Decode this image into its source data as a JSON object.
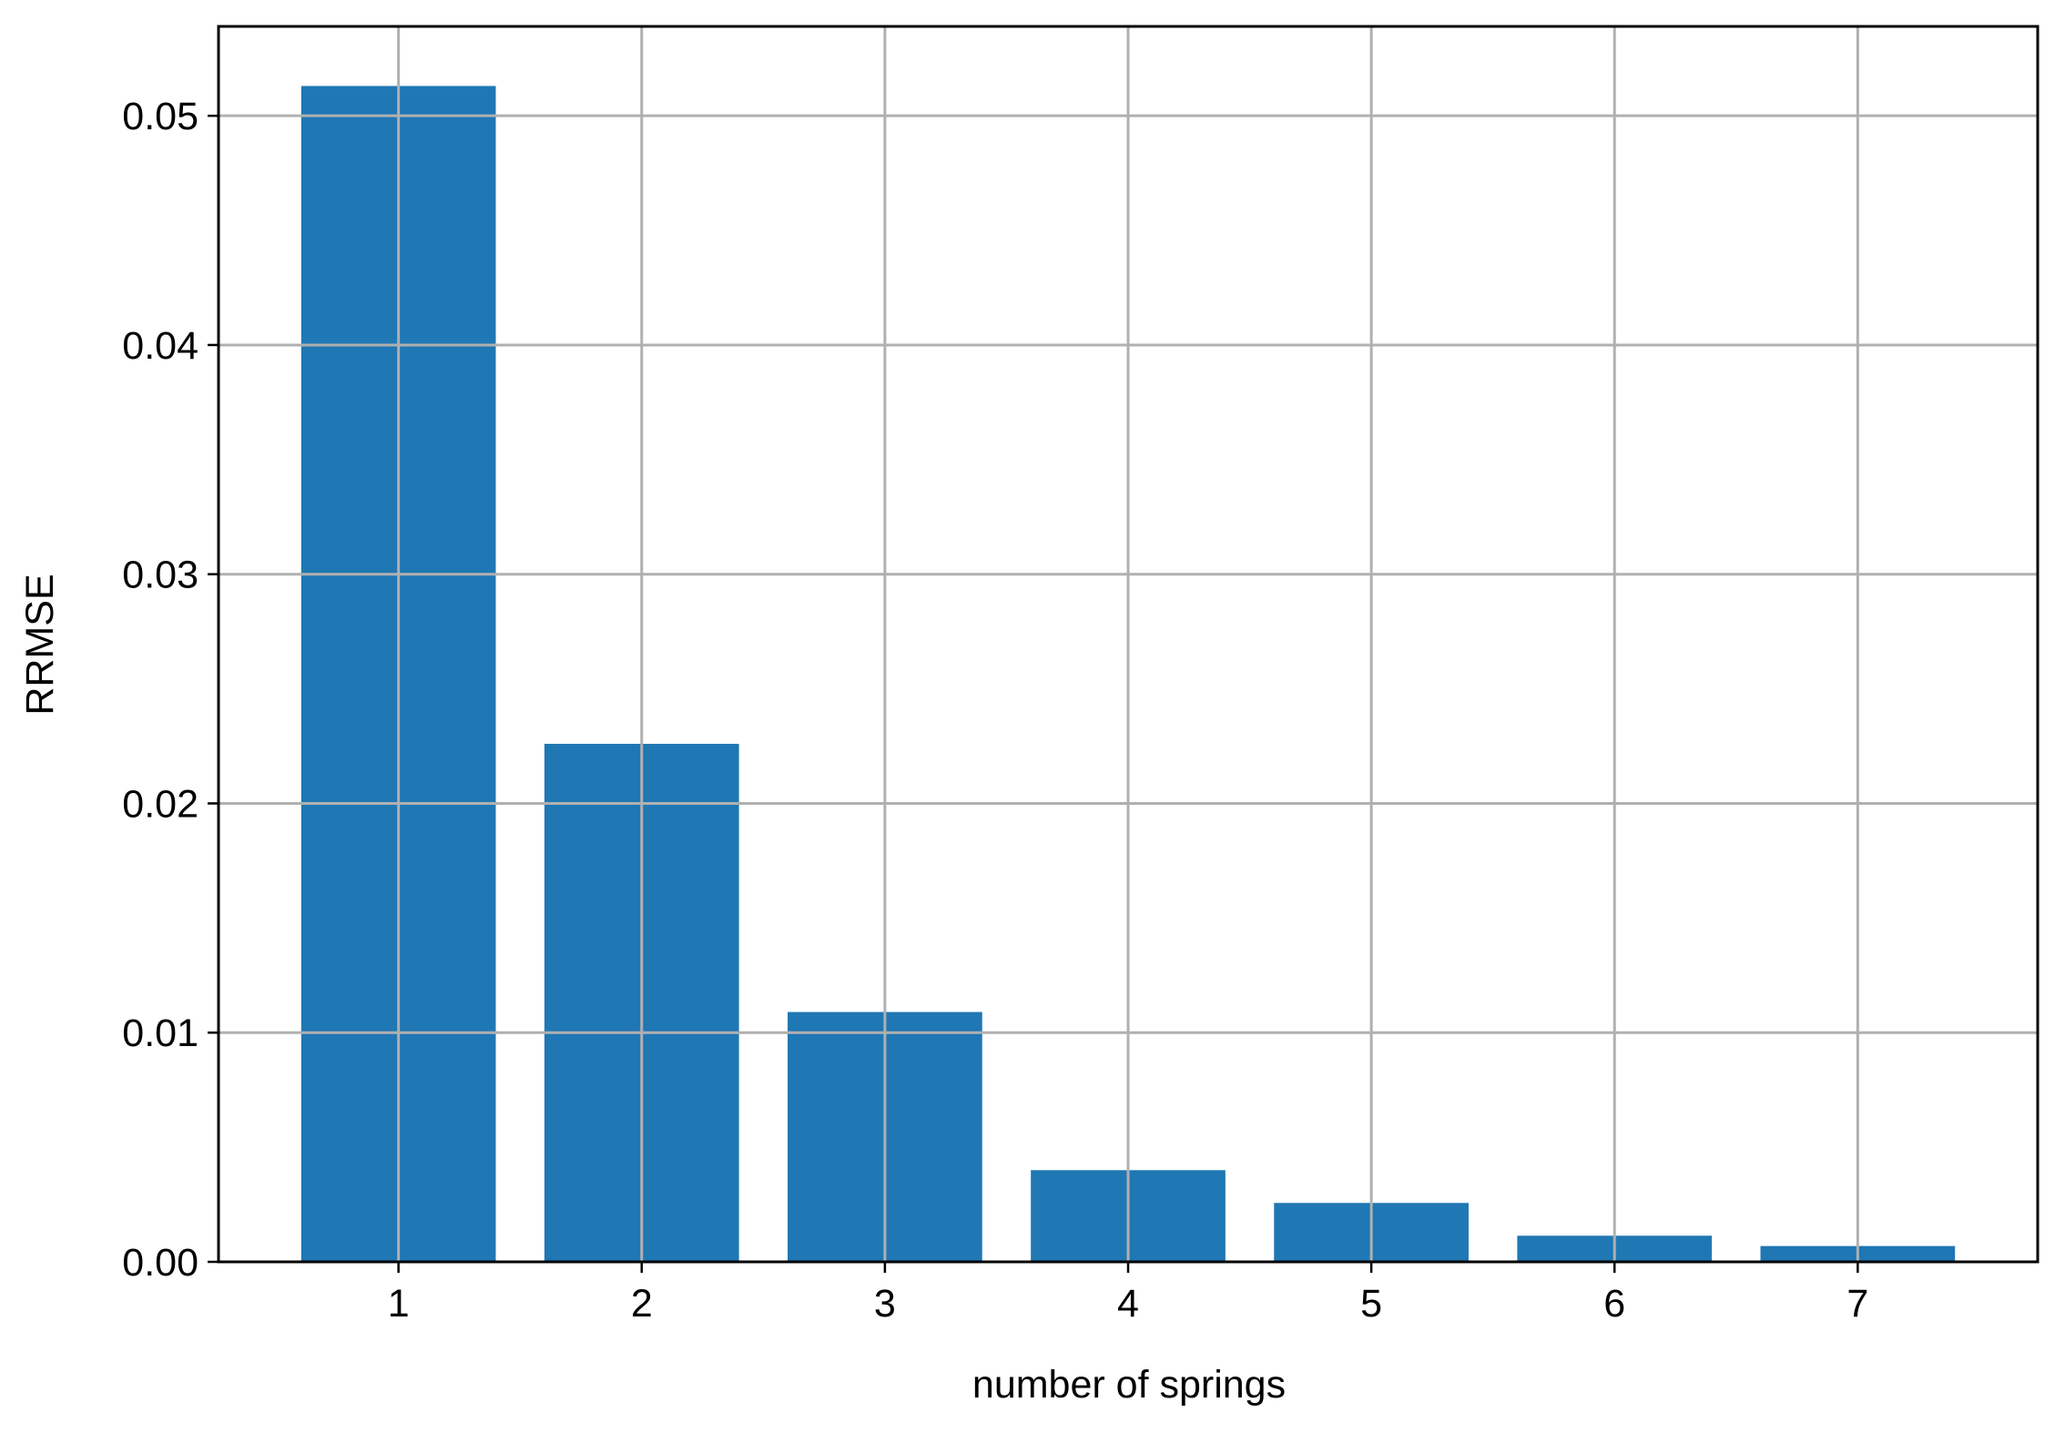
{
  "chart_data": {
    "type": "bar",
    "x": [
      1,
      2,
      3,
      4,
      5,
      6,
      7
    ],
    "values": [
      0.0513,
      0.0226,
      0.0109,
      0.004,
      0.00257,
      0.00114,
      0.00069
    ],
    "color": "#1f77b4",
    "xlabel": "number of springs",
    "ylabel": "RRMSE",
    "xlim": [
      0.26,
      7.74
    ],
    "ylim": [
      0,
      0.0539
    ],
    "xticks": [
      1,
      2,
      3,
      4,
      5,
      6,
      7
    ],
    "yticks": [
      {
        "value": 0,
        "label": "0.00"
      },
      0.01,
      0.02,
      0.03,
      0.04,
      0.05
    ],
    "bar_width": 0.8,
    "grid": true
  }
}
